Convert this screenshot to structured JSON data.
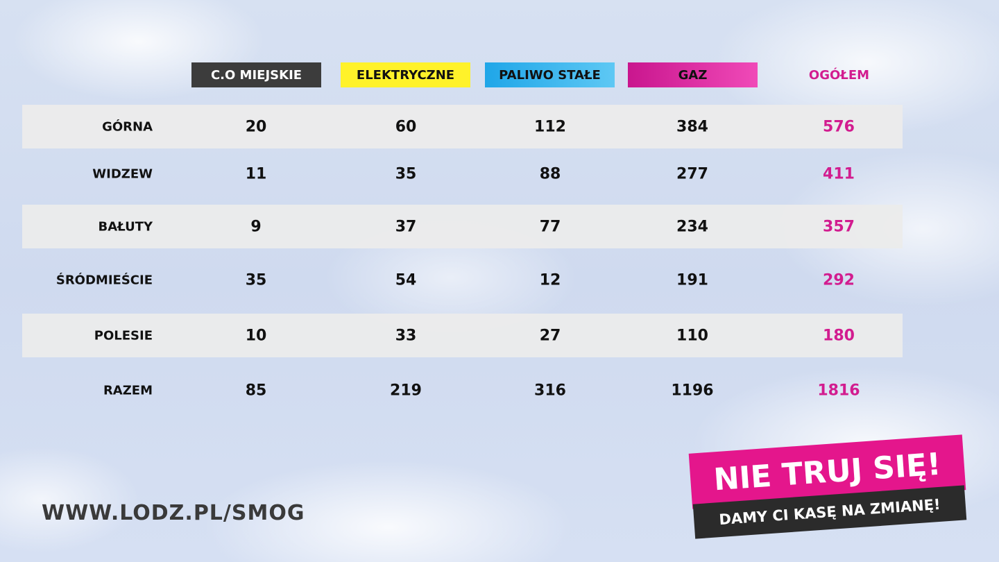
{
  "columns": [
    "C.O MIEJSKIE",
    "ELEKTRYCZNE",
    "PALIWO STAŁE",
    "GAZ",
    "OGÓŁEM"
  ],
  "rows": [
    {
      "label": "GÓRNA",
      "values": [
        20,
        60,
        112,
        384,
        576
      ]
    },
    {
      "label": "WIDZEW",
      "values": [
        11,
        35,
        88,
        277,
        411
      ]
    },
    {
      "label": "BAŁUTY",
      "values": [
        9,
        37,
        77,
        234,
        357
      ]
    },
    {
      "label": "ŚRÓDMIEŚCIE",
      "values": [
        35,
        54,
        12,
        191,
        292
      ]
    },
    {
      "label": "POLESIE",
      "values": [
        10,
        33,
        27,
        110,
        180
      ]
    },
    {
      "label": "RAZEM",
      "values": [
        85,
        219,
        316,
        1196,
        1816
      ]
    }
  ],
  "website": "WWW.LODZ.PL/SMOG",
  "slogan": {
    "headline": "NIE TRUJ SIĘ!",
    "tagline": "DAMY CI KASĘ NA ZMIANĘ!"
  }
}
